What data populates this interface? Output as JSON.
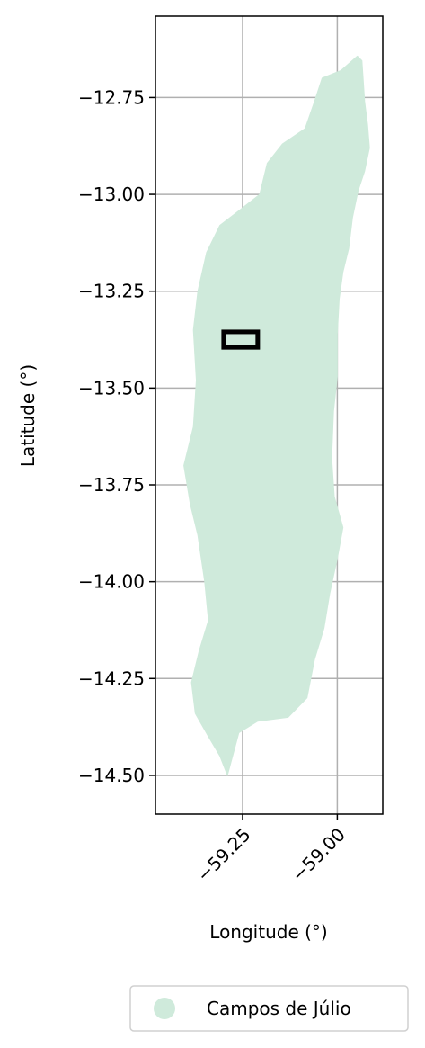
{
  "chart_data": {
    "type": "map",
    "xlabel": "Longitude (°)",
    "ylabel": "Latitude (°)",
    "xlim": [
      -59.48,
      -58.88
    ],
    "ylim": [
      -14.6,
      -12.54
    ],
    "xticks": [
      -59.25,
      -59.0
    ],
    "xtick_labels": [
      "−59.25",
      "−59.00"
    ],
    "yticks": [
      -12.75,
      -13.0,
      -13.25,
      -13.5,
      -13.75,
      -14.0,
      -14.25,
      -14.5
    ],
    "ytick_labels": [
      "−12.75",
      "−13.00",
      "−13.25",
      "−13.50",
      "−13.75",
      "−14.00",
      "−14.25",
      "−14.50"
    ],
    "grid": true,
    "region": {
      "name": "Campos de Júlio",
      "color": "#cfeadb",
      "outline": [
        [
          -58.947,
          -12.643
        ],
        [
          -58.935,
          -12.655
        ],
        [
          -58.932,
          -12.7
        ],
        [
          -58.928,
          -12.76
        ],
        [
          -58.92,
          -12.82
        ],
        [
          -58.915,
          -12.88
        ],
        [
          -58.928,
          -12.94
        ],
        [
          -58.945,
          -12.99
        ],
        [
          -58.96,
          -13.06
        ],
        [
          -58.97,
          -13.14
        ],
        [
          -58.985,
          -13.2
        ],
        [
          -58.995,
          -13.27
        ],
        [
          -59.0,
          -13.36
        ],
        [
          -59.0,
          -13.47
        ],
        [
          -59.01,
          -13.56
        ],
        [
          -59.015,
          -13.68
        ],
        [
          -59.008,
          -13.78
        ],
        [
          -58.985,
          -13.86
        ],
        [
          -59.0,
          -13.94
        ],
        [
          -59.02,
          -14.03
        ],
        [
          -59.035,
          -14.12
        ],
        [
          -59.06,
          -14.2
        ],
        [
          -59.08,
          -14.3
        ],
        [
          -59.13,
          -14.35
        ],
        [
          -59.21,
          -14.36
        ],
        [
          -59.26,
          -14.39
        ],
        [
          -59.29,
          -14.5
        ],
        [
          -59.31,
          -14.45
        ],
        [
          -59.34,
          -14.4
        ],
        [
          -59.375,
          -14.34
        ],
        [
          -59.385,
          -14.26
        ],
        [
          -59.365,
          -14.18
        ],
        [
          -59.34,
          -14.1
        ],
        [
          -59.35,
          -14.0
        ],
        [
          -59.368,
          -13.88
        ],
        [
          -59.388,
          -13.8
        ],
        [
          -59.405,
          -13.7
        ],
        [
          -59.38,
          -13.6
        ],
        [
          -59.372,
          -13.48
        ],
        [
          -59.38,
          -13.35
        ],
        [
          -59.368,
          -13.25
        ],
        [
          -59.345,
          -13.15
        ],
        [
          -59.31,
          -13.08
        ],
        [
          -59.27,
          -13.05
        ],
        [
          -59.205,
          -13.0
        ],
        [
          -59.185,
          -12.92
        ],
        [
          -59.145,
          -12.87
        ],
        [
          -59.085,
          -12.83
        ],
        [
          -59.06,
          -12.76
        ],
        [
          -59.04,
          -12.7
        ],
        [
          -58.99,
          -12.68
        ]
      ]
    },
    "highlight_box": {
      "lon": [
        -59.3,
        -59.21
      ],
      "lat": [
        -13.395,
        -13.355
      ]
    },
    "legend": {
      "placement": "bottom-right",
      "entries": [
        {
          "label": "Campos de Júlio",
          "color": "#cfeadb"
        }
      ]
    }
  }
}
